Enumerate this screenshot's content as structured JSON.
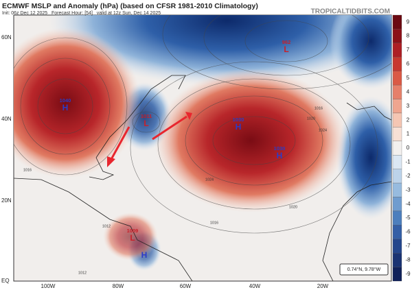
{
  "header": {
    "title": "ECMWF MSLP and Anomaly (hPa) (based on CFSR 1981-2010 Climatology)",
    "subtitle": "Init: 06z Dec 12 2025   Forecast Hour: [54]   valid at 12z Sun, Dec 14 2025",
    "credit": "TROPICALTIDBITS.COM"
  },
  "lat_labels": [
    "60N",
    "40N",
    "20N",
    "EQ"
  ],
  "lon_labels": [
    "100W",
    "80W",
    "60W",
    "40W",
    "20W"
  ],
  "colorbar": [
    9,
    8,
    7,
    6,
    5,
    4,
    3,
    2,
    1,
    0,
    -1,
    -2,
    -3,
    -4,
    -5,
    -6,
    -7,
    -8,
    -9
  ],
  "centers": [
    {
      "value": "1040",
      "kind": "H"
    },
    {
      "value": "962",
      "kind": "L"
    },
    {
      "value": "1011",
      "kind": "L"
    },
    {
      "value": "1030",
      "kind": "H"
    },
    {
      "value": "1030",
      "kind": "H"
    },
    {
      "value": "1009",
      "kind": "L"
    },
    {
      "kind": "H"
    }
  ],
  "isobar_labels": [
    "1016",
    "1020",
    "1024",
    "1016",
    "1024",
    "1020",
    "1016",
    "1012",
    "1012"
  ],
  "readout": "0.74°N, 9.78°W"
}
